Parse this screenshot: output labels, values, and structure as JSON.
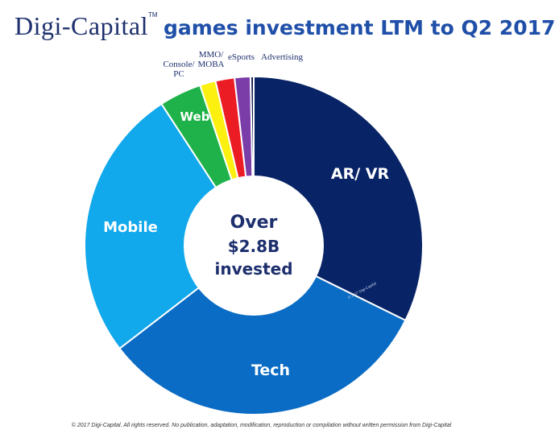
{
  "header": {
    "brand": "Digi-Capital",
    "trademark": "TM",
    "title": "games investment LTM to Q2 2017"
  },
  "footer": {
    "copyright": "© 2017 Digi-Capital. All rights reserved. No publication, adaptation, modification, reproduction or compilation without written permission from Digi-Capital"
  },
  "chart_data": {
    "type": "pie",
    "donut": true,
    "center_label": [
      "Over",
      "$2.8B",
      "invested"
    ],
    "watermark": "© 2017 Digi-Capital",
    "unit": "%",
    "slices": [
      {
        "label": "AR/ VR",
        "value": 32,
        "color": "#082466"
      },
      {
        "label": "Tech",
        "value": 32,
        "color": "#0a6cc4"
      },
      {
        "label": "Mobile",
        "value": 26,
        "color": "#12a8ec"
      },
      {
        "label": "Web",
        "value": 4,
        "color": "#1fb24a"
      },
      {
        "label": "Console/ PC",
        "value": 1.5,
        "color": "#fcf011"
      },
      {
        "label": "MMO/ MOBA",
        "value": 1.8,
        "color": "#ec1c24"
      },
      {
        "label": "eSports",
        "value": 1.5,
        "color": "#7b3ea8"
      },
      {
        "label": "Advertising",
        "value": 0.3,
        "color": "#111c4a"
      }
    ]
  }
}
